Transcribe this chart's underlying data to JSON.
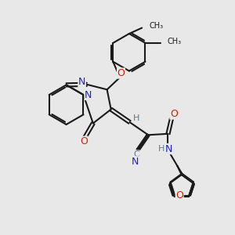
{
  "bg_color": "#e8e8e8",
  "bond_color": "#1a1a1a",
  "n_color": "#2222cc",
  "o_color": "#cc2200",
  "c_gray_color": "#5a7a8a",
  "line_width": 1.5,
  "fig_w": 3.0,
  "fig_h": 3.0,
  "dpi": 100,
  "xlim": [
    0,
    10
  ],
  "ylim": [
    0,
    10
  ]
}
